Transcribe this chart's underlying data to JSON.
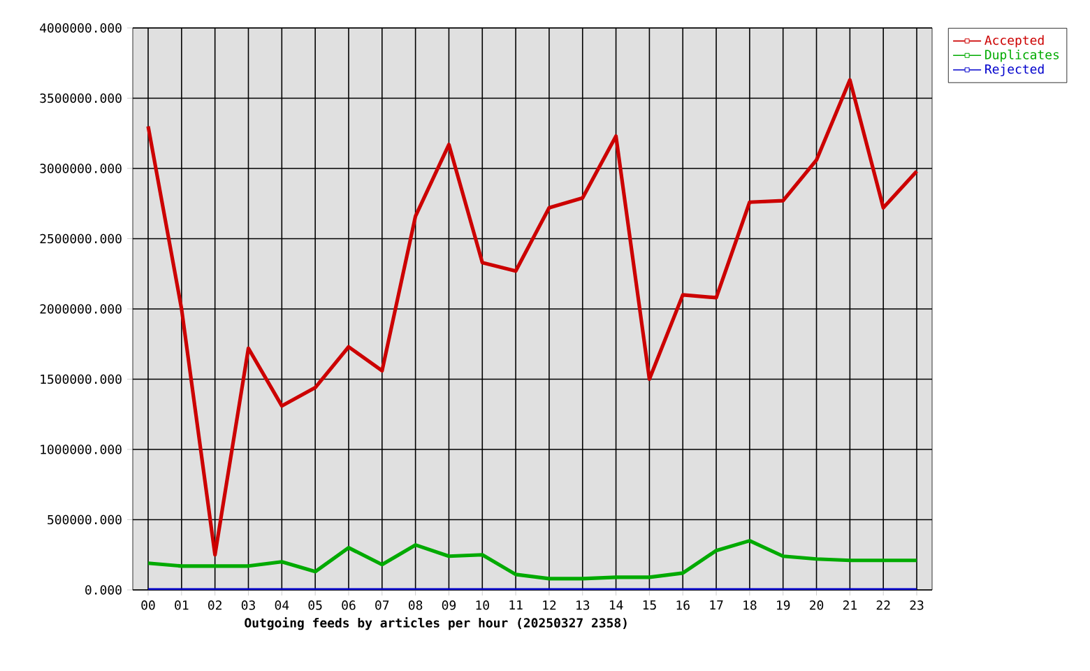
{
  "chart_data": {
    "type": "line",
    "xlabel": "Outgoing feeds by articles per hour (20250327 2358)",
    "categories": [
      "00",
      "01",
      "02",
      "03",
      "04",
      "05",
      "06",
      "07",
      "08",
      "09",
      "10",
      "11",
      "12",
      "13",
      "14",
      "15",
      "16",
      "17",
      "18",
      "19",
      "20",
      "21",
      "22",
      "23"
    ],
    "series": [
      {
        "name": "Accepted",
        "color": "#cc0000",
        "values": [
          3300000,
          2000000,
          250000,
          1720000,
          1310000,
          1440000,
          1730000,
          1560000,
          2660000,
          3170000,
          2330000,
          2270000,
          2720000,
          2790000,
          3230000,
          1500000,
          2100000,
          2080000,
          2760000,
          2770000,
          3060000,
          3630000,
          2720000,
          2980000
        ]
      },
      {
        "name": "Duplicates",
        "color": "#00aa00",
        "values": [
          190000,
          170000,
          170000,
          170000,
          200000,
          130000,
          300000,
          180000,
          320000,
          240000,
          250000,
          110000,
          80000,
          80000,
          90000,
          90000,
          120000,
          280000,
          350000,
          240000,
          220000,
          210000,
          210000,
          210000
        ]
      },
      {
        "name": "Rejected",
        "color": "#0000cc",
        "values": [
          0,
          0,
          0,
          0,
          0,
          0,
          0,
          0,
          0,
          0,
          0,
          0,
          0,
          0,
          0,
          0,
          0,
          0,
          0,
          0,
          0,
          0,
          0,
          0
        ]
      }
    ],
    "ylim": [
      0,
      4000000
    ],
    "yticks": [
      {
        "value": 0,
        "label": "0.000"
      },
      {
        "value": 500000,
        "label": "500000.000"
      },
      {
        "value": 1000000,
        "label": "1000000.000"
      },
      {
        "value": 1500000,
        "label": "1500000.000"
      },
      {
        "value": 2000000,
        "label": "2000000.000"
      },
      {
        "value": 2500000,
        "label": "2500000.000"
      },
      {
        "value": 3000000,
        "label": "3000000.000"
      },
      {
        "value": 3500000,
        "label": "3500000.000"
      },
      {
        "value": 4000000,
        "label": "4000000.000"
      }
    ],
    "grid": true,
    "legend": "top right"
  }
}
